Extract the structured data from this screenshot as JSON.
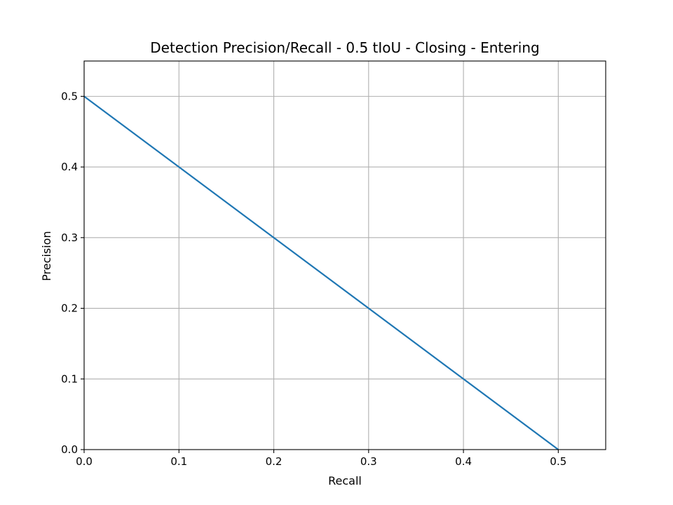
{
  "chart_data": {
    "type": "line",
    "title": "Detection Precision/Recall - 0.5 tIoU - Closing - Entering",
    "xlabel": "Recall",
    "ylabel": "Precision",
    "xlim": [
      0,
      0.55
    ],
    "ylim": [
      0,
      0.55
    ],
    "xticks": [
      "0.0",
      "0.1",
      "0.2",
      "0.3",
      "0.4",
      "0.5"
    ],
    "yticks": [
      "0.0",
      "0.1",
      "0.2",
      "0.3",
      "0.4",
      "0.5"
    ],
    "grid": true,
    "legend": "none",
    "series": [
      {
        "color": "#1f77b4",
        "x": [
          0.0,
          0.5
        ],
        "y": [
          0.5,
          0.0
        ]
      }
    ]
  }
}
